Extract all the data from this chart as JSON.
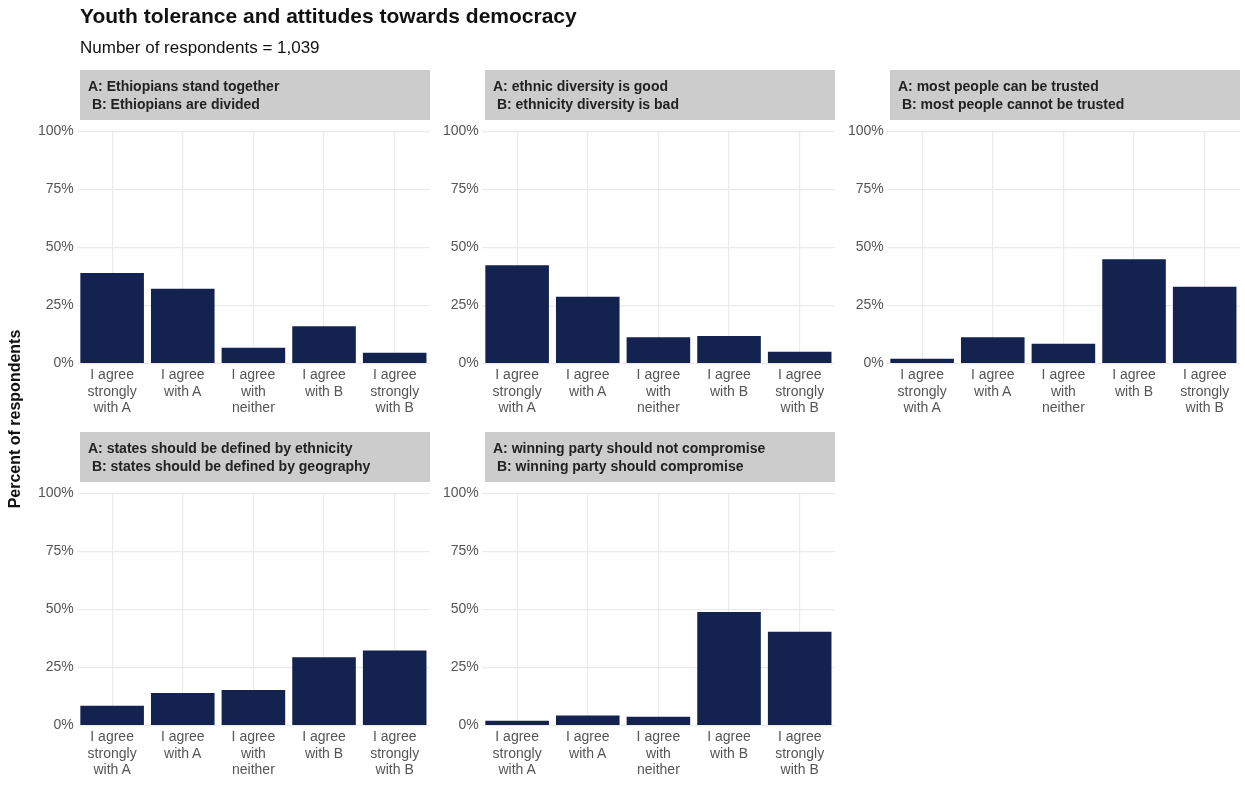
{
  "chart_data": [
    {
      "type": "other",
      "title": "Youth tolerance and attitudes towards democracy",
      "subtitle": "Number of respondents = 1,039",
      "ylabel": "Percent of respondents"
    },
    {
      "type": "bar",
      "title": "A: Ethiopians stand together",
      "subtitle": "B: Ethiopians are divided",
      "categories": [
        "I agree strongly with A",
        "I agree with A",
        "I agree with neither",
        "I agree with B",
        "I agree strongly with B"
      ],
      "values": [
        39,
        32.2,
        6.8,
        16.1,
        4.7
      ],
      "color": "#13224f",
      "ylim": [
        0,
        100
      ],
      "yticks": [
        {
          "value": 0,
          "label": "0%"
        },
        {
          "value": 25,
          "label": "25%"
        },
        {
          "value": 50,
          "label": "50%"
        },
        {
          "value": 75,
          "label": "75%"
        },
        {
          "value": 100,
          "label": "100%"
        }
      ],
      "grid": true
    },
    {
      "type": "bar",
      "title": "A: ethnic diversity is good",
      "subtitle": "B: ethnicity diversity is bad",
      "categories": [
        "I agree strongly with A",
        "I agree with A",
        "I agree with neither",
        "I agree with B",
        "I agree strongly with B"
      ],
      "values": [
        42.4,
        28.8,
        11.4,
        11.9,
        5.1
      ],
      "color": "#13224f",
      "ylim": [
        0,
        100
      ],
      "yticks": [
        {
          "value": 0,
          "label": "0%"
        },
        {
          "value": 25,
          "label": "25%"
        },
        {
          "value": 50,
          "label": "50%"
        },
        {
          "value": 75,
          "label": "75%"
        },
        {
          "value": 100,
          "label": "100%"
        }
      ],
      "grid": true
    },
    {
      "type": "bar",
      "title": "A: most people can be trusted",
      "subtitle": "B: most people cannot be trusted",
      "categories": [
        "I agree strongly with A",
        "I agree with A",
        "I agree with neither",
        "I agree with B",
        "I agree strongly with B"
      ],
      "values": [
        2.1,
        11.4,
        8.5,
        44.9,
        33.1
      ],
      "color": "#13224f",
      "ylim": [
        0,
        100
      ],
      "yticks": [
        {
          "value": 0,
          "label": "0%"
        },
        {
          "value": 25,
          "label": "25%"
        },
        {
          "value": 50,
          "label": "50%"
        },
        {
          "value": 75,
          "label": "75%"
        },
        {
          "value": 100,
          "label": "100%"
        }
      ],
      "grid": true
    },
    {
      "type": "bar",
      "title": "A: states should be defined by ethnicity",
      "subtitle": "B: states should be defined by geography",
      "categories": [
        "I agree strongly with A",
        "I agree with A",
        "I agree with neither",
        "I agree with B",
        "I agree strongly with B"
      ],
      "values": [
        8.5,
        14,
        15.3,
        29.4,
        32.3
      ],
      "color": "#13224f",
      "ylim": [
        0,
        100
      ],
      "yticks": [
        {
          "value": 0,
          "label": "0%"
        },
        {
          "value": 25,
          "label": "25%"
        },
        {
          "value": 50,
          "label": "50%"
        },
        {
          "value": 75,
          "label": "75%"
        },
        {
          "value": 100,
          "label": "100%"
        }
      ],
      "grid": true
    },
    {
      "type": "bar",
      "title": "A: winning party should not compromise",
      "subtitle": "B: winning party should compromise",
      "categories": [
        "I agree strongly with A",
        "I agree with A",
        "I agree with neither",
        "I agree with B",
        "I agree strongly with B"
      ],
      "values": [
        2.1,
        4.3,
        3.8,
        48.9,
        40.4
      ],
      "color": "#13224f",
      "ylim": [
        0,
        100
      ],
      "yticks": [
        {
          "value": 0,
          "label": "0%"
        },
        {
          "value": 25,
          "label": "25%"
        },
        {
          "value": 50,
          "label": "50%"
        },
        {
          "value": 75,
          "label": "75%"
        },
        {
          "value": 100,
          "label": "100%"
        }
      ],
      "grid": true
    }
  ]
}
